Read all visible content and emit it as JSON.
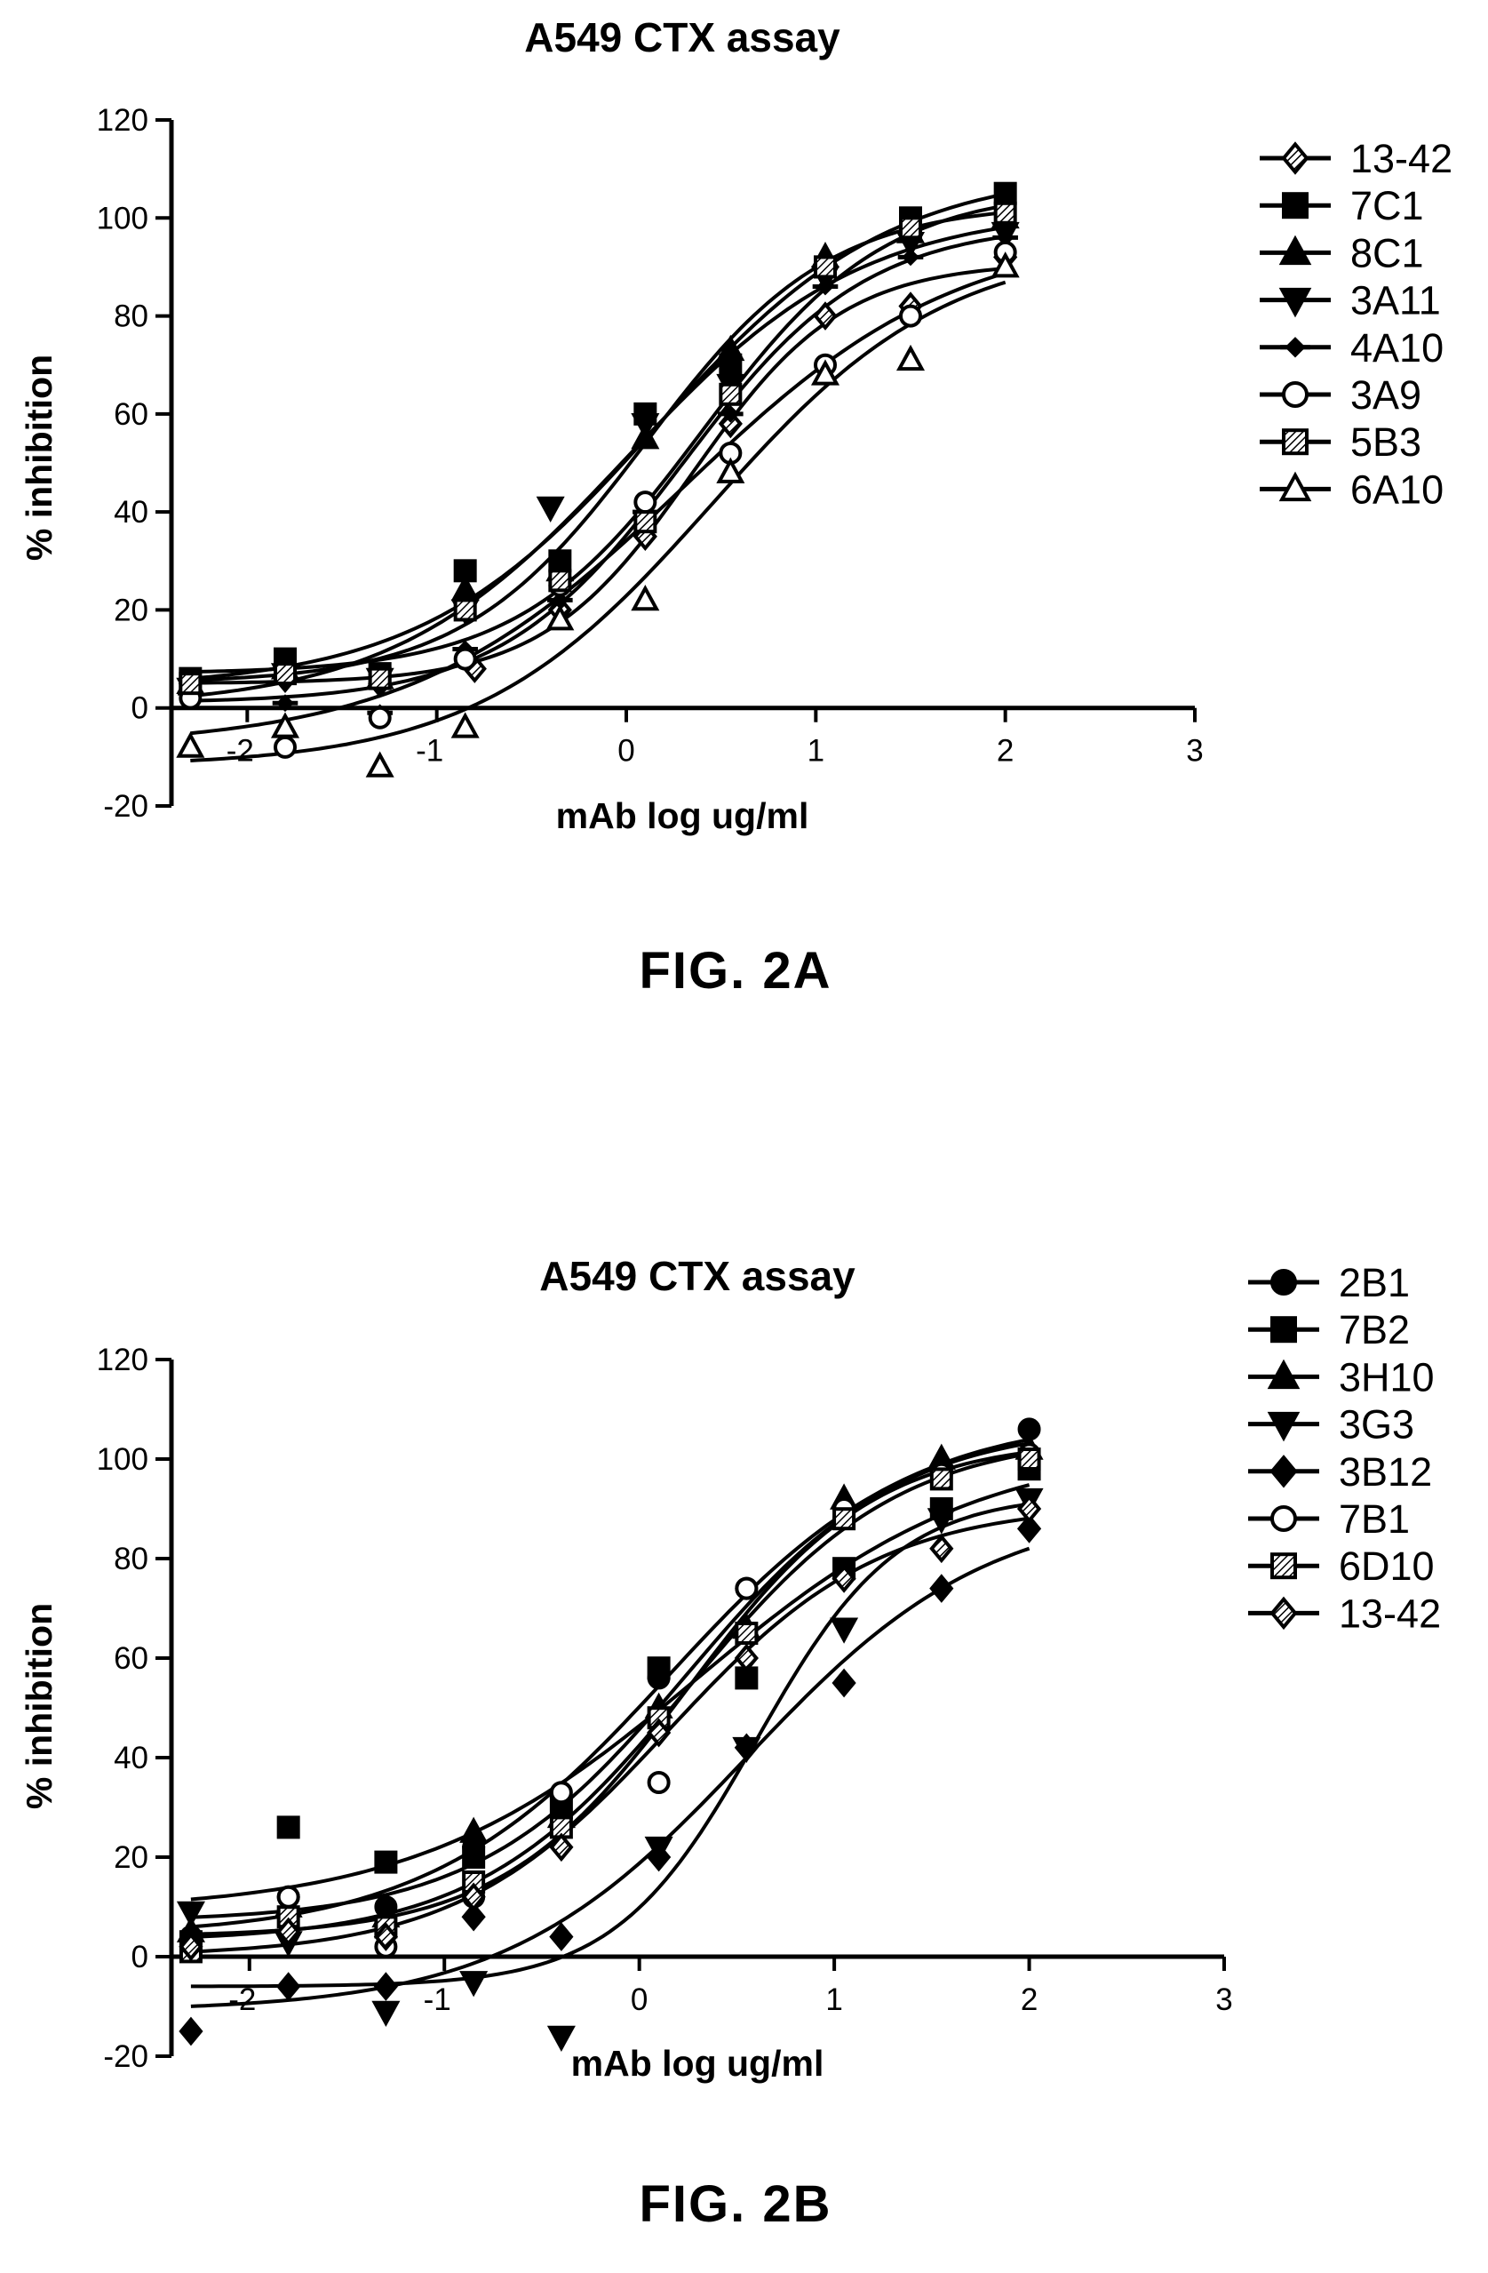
{
  "chart_data": [
    {
      "type": "scatter",
      "title": "A549 CTX assay",
      "xlabel": "mAb log ug/ml",
      "ylabel": "% inhibition",
      "xlim": [
        -2.4,
        3
      ],
      "ylim": [
        -20,
        120
      ],
      "xticks": [
        -2,
        -1,
        0,
        1,
        2,
        3
      ],
      "yticks": [
        -20,
        0,
        20,
        40,
        60,
        80,
        100,
        120
      ],
      "legend_position": "right",
      "caption": "FIG. 2A",
      "series": [
        {
          "name": "13-42",
          "marker": "diamond-hatched",
          "x": [
            -2.3,
            -1.8,
            -1.3,
            -0.8,
            -0.35,
            0.1,
            0.55,
            1.05,
            1.5,
            2.0
          ],
          "y": [
            5,
            6,
            5,
            8,
            20,
            35,
            58,
            80,
            82,
            92
          ]
        },
        {
          "name": "7C1",
          "marker": "square-filled",
          "x": [
            -2.3,
            -1.8,
            -1.3,
            -0.85,
            -0.35,
            0.1,
            0.55,
            1.05,
            1.5,
            2.0
          ],
          "y": [
            6,
            10,
            7,
            28,
            30,
            60,
            70,
            90,
            100,
            105
          ]
        },
        {
          "name": "8C1",
          "marker": "triangle-filled",
          "x": [
            -2.3,
            -1.8,
            -1.3,
            -0.85,
            -0.35,
            0.1,
            0.55,
            1.05,
            1.5,
            2.0
          ],
          "y": [
            5,
            8,
            6,
            24,
            28,
            55,
            73,
            92,
            97,
            100
          ]
        },
        {
          "name": "3A11",
          "marker": "triangle-down-filled",
          "x": [
            -2.3,
            -1.8,
            -1.3,
            -0.85,
            -0.4,
            0.1,
            0.55,
            1.05,
            1.5,
            2.0
          ],
          "y": [
            4,
            7,
            6,
            20,
            41,
            58,
            66,
            88,
            95,
            97
          ]
        },
        {
          "name": "4A10",
          "marker": "plus-filled",
          "x": [
            -2.3,
            -1.8,
            -1.3,
            -0.85,
            -0.35,
            0.1,
            0.55,
            1.05,
            1.5,
            2.0
          ],
          "y": [
            3,
            1,
            -1,
            12,
            22,
            40,
            60,
            86,
            92,
            96
          ]
        },
        {
          "name": "3A9",
          "marker": "circle-open",
          "x": [
            -2.3,
            -1.8,
            -1.3,
            -0.85,
            -0.35,
            0.1,
            0.55,
            1.05,
            1.5,
            2.0
          ],
          "y": [
            2,
            -8,
            -2,
            10,
            25,
            42,
            52,
            70,
            80,
            93
          ]
        },
        {
          "name": "5B3",
          "marker": "square-hatched",
          "x": [
            -2.3,
            -1.8,
            -1.3,
            -0.85,
            -0.35,
            0.1,
            0.55,
            1.05,
            1.5,
            2.0
          ],
          "y": [
            5,
            7,
            6,
            20,
            26,
            38,
            64,
            90,
            98,
            101
          ]
        },
        {
          "name": "6A10",
          "marker": "triangle-open",
          "x": [
            -2.3,
            -1.8,
            -1.3,
            -0.85,
            -0.35,
            0.1,
            0.55,
            1.05,
            1.5,
            2.0
          ],
          "y": [
            -8,
            -4,
            -12,
            -4,
            18,
            22,
            48,
            68,
            71,
            90
          ]
        }
      ]
    },
    {
      "type": "scatter",
      "title": "A549 CTX assay",
      "xlabel": "mAb log ug/ml",
      "ylabel": "% inhibition",
      "xlim": [
        -2.4,
        3
      ],
      "ylim": [
        -20,
        120
      ],
      "xticks": [
        -2,
        -1,
        0,
        1,
        2,
        3
      ],
      "yticks": [
        -20,
        0,
        20,
        40,
        60,
        80,
        100,
        120
      ],
      "legend_position": "right",
      "caption": "FIG. 2B",
      "series": [
        {
          "name": "2B1",
          "marker": "circle-filled",
          "x": [
            -2.3,
            -1.8,
            -1.3,
            -0.85,
            -0.4,
            0.1,
            0.55,
            1.05,
            1.55,
            2.0
          ],
          "y": [
            4,
            12,
            10,
            22,
            32,
            56,
            74,
            88,
            98,
            106
          ]
        },
        {
          "name": "7B2",
          "marker": "square-filled",
          "x": [
            -2.3,
            -1.8,
            -1.3,
            -0.85,
            -0.4,
            0.1,
            0.55,
            1.05,
            1.55,
            2.0
          ],
          "y": [
            3,
            26,
            19,
            20,
            30,
            58,
            56,
            78,
            90,
            98
          ]
        },
        {
          "name": "3H10",
          "marker": "triangle-filled",
          "x": [
            -2.3,
            -1.8,
            -1.3,
            -0.85,
            -0.4,
            0.1,
            0.55,
            1.05,
            1.55,
            2.0
          ],
          "y": [
            5,
            10,
            8,
            25,
            28,
            50,
            66,
            92,
            100,
            102
          ]
        },
        {
          "name": "3G3",
          "marker": "triangle-down-filled",
          "x": [
            -2.3,
            -1.8,
            -1.3,
            -0.85,
            -0.4,
            0.1,
            0.55,
            1.05,
            1.55,
            2.0
          ],
          "y": [
            9,
            3,
            -11,
            -5,
            -16,
            22,
            42,
            66,
            88,
            92
          ]
        },
        {
          "name": "3B12",
          "marker": "diamond-filled",
          "x": [
            -2.3,
            -1.8,
            -1.3,
            -0.85,
            -0.4,
            0.1,
            0.55,
            1.05,
            1.55,
            2.0
          ],
          "y": [
            -15,
            -6,
            -6,
            8,
            4,
            20,
            42,
            55,
            74,
            86
          ]
        },
        {
          "name": "7B1",
          "marker": "circle-open",
          "x": [
            -2.3,
            -1.8,
            -1.3,
            -0.85,
            -0.4,
            0.1,
            0.55,
            1.05,
            1.55,
            2.0
          ],
          "y": [
            2,
            12,
            2,
            12,
            33,
            35,
            74,
            90,
            97,
            101
          ]
        },
        {
          "name": "6D10",
          "marker": "square-hatched",
          "x": [
            -2.3,
            -1.8,
            -1.3,
            -0.85,
            -0.4,
            0.1,
            0.55,
            1.05,
            1.55,
            2.0
          ],
          "y": [
            1,
            8,
            6,
            15,
            26,
            48,
            65,
            88,
            96,
            100
          ]
        },
        {
          "name": "13-42",
          "marker": "diamond-hatched",
          "x": [
            -2.3,
            -1.8,
            -1.3,
            -0.85,
            -0.4,
            0.1,
            0.55,
            1.05,
            1.55,
            2.0
          ],
          "y": [
            2,
            5,
            4,
            12,
            22,
            45,
            60,
            76,
            82,
            90
          ]
        }
      ]
    }
  ]
}
